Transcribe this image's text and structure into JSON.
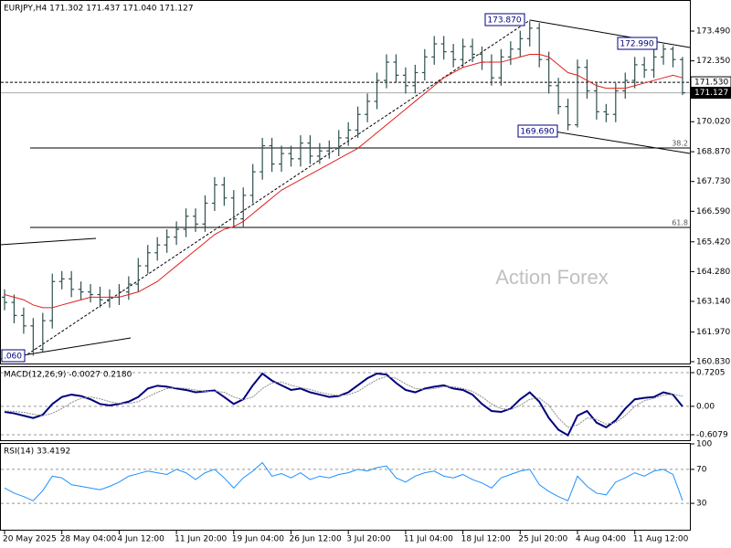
{
  "chart_data": [
    {
      "type": "ohlc",
      "title": "EURJPY,H4  171.302 171.437 171.040 171.127",
      "categories": [
        "20 May 2025",
        null,
        null,
        null,
        null,
        null,
        "28 May 04:00",
        null,
        null,
        null,
        null,
        null,
        "4 Jun 12:00",
        null,
        null,
        null,
        null,
        null,
        "11 Jun 20:00",
        null,
        null,
        null,
        null,
        null,
        "19 Jun 04:00",
        null,
        null,
        null,
        null,
        null,
        "26 Jun 12:00",
        null,
        null,
        null,
        null,
        null,
        "3 Jul 20:00",
        null,
        null,
        null,
        null,
        null,
        "11 Jul 04:00",
        null,
        null,
        null,
        null,
        null,
        "18 Jul 12:00",
        null,
        null,
        null,
        null,
        null,
        "25 Jul 20:00",
        null,
        null,
        null,
        null,
        null,
        "4 Aug 04:00",
        null,
        null,
        null,
        null,
        null,
        "11 Aug 12:00",
        null,
        null,
        null,
        null,
        null
      ],
      "open": [
        163.3,
        163.1,
        162.6,
        162.2,
        161.3,
        162.4,
        163.9,
        164.0,
        163.6,
        163.5,
        163.4,
        163.2,
        163.3,
        163.5,
        163.8,
        164.5,
        165.0,
        165.3,
        165.6,
        165.9,
        166.4,
        166.1,
        166.9,
        167.6,
        167.1,
        166.3,
        167.2,
        168.1,
        169.1,
        168.4,
        168.8,
        168.6,
        169.2,
        168.7,
        168.9,
        169.0,
        169.4,
        169.7,
        170.3,
        170.8,
        171.6,
        172.3,
        171.8,
        171.4,
        171.9,
        172.5,
        173.0,
        172.7,
        172.4,
        172.9,
        172.6,
        172.3,
        171.7,
        172.5,
        172.8,
        173.2,
        173.6,
        172.4,
        171.4,
        170.6,
        169.9,
        172.1,
        171.2,
        170.4,
        170.3,
        171.2,
        171.6,
        172.2,
        172.0,
        172.5,
        172.8,
        172.4
      ],
      "high": [
        163.6,
        163.4,
        162.9,
        162.5,
        162.7,
        164.2,
        164.3,
        164.3,
        163.9,
        163.8,
        163.7,
        163.6,
        163.8,
        164.1,
        164.8,
        165.3,
        165.6,
        165.9,
        166.2,
        166.7,
        166.7,
        167.2,
        167.9,
        167.9,
        167.4,
        167.5,
        168.4,
        169.4,
        169.4,
        169.1,
        169.1,
        169.5,
        169.5,
        169.2,
        169.3,
        169.7,
        170.0,
        170.6,
        171.1,
        171.9,
        172.6,
        172.6,
        172.1,
        172.2,
        172.8,
        173.3,
        173.3,
        173.0,
        173.2,
        173.2,
        172.9,
        172.6,
        172.8,
        173.1,
        173.5,
        173.87,
        173.8,
        172.7,
        171.7,
        170.9,
        172.4,
        172.4,
        171.5,
        170.7,
        171.5,
        171.9,
        172.5,
        172.5,
        172.8,
        172.99,
        172.9,
        172.5
      ],
      "low": [
        162.8,
        162.3,
        161.9,
        161.06,
        161.2,
        162.1,
        163.6,
        163.3,
        163.2,
        163.1,
        162.9,
        162.9,
        163.0,
        163.2,
        163.5,
        164.2,
        164.7,
        165.0,
        165.3,
        165.6,
        165.8,
        165.8,
        166.6,
        166.8,
        166.0,
        166.0,
        166.9,
        167.8,
        168.1,
        168.1,
        168.3,
        168.3,
        168.4,
        168.4,
        168.6,
        168.7,
        169.1,
        169.4,
        170.0,
        170.5,
        171.3,
        171.5,
        171.1,
        171.1,
        171.6,
        172.2,
        172.4,
        172.1,
        172.1,
        172.3,
        172.0,
        171.4,
        171.4,
        172.2,
        172.5,
        172.9,
        172.1,
        171.1,
        170.3,
        169.69,
        169.8,
        170.9,
        170.1,
        170.0,
        170.0,
        170.9,
        171.3,
        171.7,
        171.7,
        172.2,
        172.1,
        171.04
      ],
      "close": [
        163.1,
        162.6,
        162.2,
        161.3,
        162.4,
        163.9,
        164.0,
        163.6,
        163.5,
        163.4,
        163.2,
        163.3,
        163.5,
        163.8,
        164.5,
        165.0,
        165.3,
        165.6,
        165.9,
        166.4,
        166.1,
        166.9,
        167.6,
        167.1,
        166.3,
        167.2,
        168.1,
        169.1,
        168.4,
        168.8,
        168.6,
        169.2,
        168.7,
        168.9,
        169.0,
        169.4,
        169.7,
        170.3,
        170.8,
        171.6,
        172.3,
        171.8,
        171.4,
        171.9,
        172.5,
        173.0,
        172.7,
        172.4,
        172.9,
        172.6,
        172.3,
        171.7,
        172.5,
        172.8,
        173.2,
        173.6,
        172.4,
        171.4,
        170.6,
        169.9,
        172.1,
        171.2,
        170.4,
        170.3,
        171.2,
        171.6,
        172.2,
        172.0,
        172.5,
        172.8,
        172.4,
        171.127
      ],
      "color": "#2f4f4f",
      "ma": {
        "color": "#e0201c",
        "values": [
          163.4,
          163.3,
          163.2,
          163.0,
          162.9,
          162.9,
          163.0,
          163.1,
          163.2,
          163.3,
          163.3,
          163.3,
          163.3,
          163.4,
          163.5,
          163.7,
          163.9,
          164.2,
          164.5,
          164.8,
          165.1,
          165.4,
          165.7,
          165.9,
          166.0,
          166.2,
          166.5,
          166.8,
          167.1,
          167.4,
          167.6,
          167.8,
          168.0,
          168.2,
          168.4,
          168.6,
          168.8,
          169.0,
          169.3,
          169.6,
          169.9,
          170.2,
          170.5,
          170.8,
          171.1,
          171.4,
          171.7,
          171.9,
          172.1,
          172.2,
          172.3,
          172.3,
          172.3,
          172.4,
          172.5,
          172.6,
          172.6,
          172.5,
          172.2,
          171.9,
          171.8,
          171.6,
          171.4,
          171.3,
          171.3,
          171.3,
          171.4,
          171.5,
          171.6,
          171.7,
          171.8,
          171.7
        ]
      },
      "ylim": [
        160.76,
        174.68
      ],
      "yticks": [
        {
          "value": 173.49,
          "label": "173.490"
        },
        {
          "value": 172.35,
          "label": "172.350"
        },
        {
          "value": 170.02,
          "label": "170.020"
        },
        {
          "value": 168.87,
          "label": "168.870"
        },
        {
          "value": 167.73,
          "label": "167.730"
        },
        {
          "value": 166.59,
          "label": "166.590"
        },
        {
          "value": 165.42,
          "label": "165.420"
        },
        {
          "value": 164.28,
          "label": "164.280"
        },
        {
          "value": 163.14,
          "label": "163.140"
        },
        {
          "value": 161.97,
          "label": "161.970"
        },
        {
          "value": 160.83,
          "label": "160.830"
        }
      ],
      "price_lines": [
        {
          "value": 171.53,
          "label": "171.530"
        },
        {
          "value": 171.127,
          "label": "171.127"
        }
      ],
      "annotations": [
        "173.870",
        "172.990",
        "169.690",
        ".060",
        "38.2",
        "61.8"
      ],
      "watermark": "Action Forex"
    },
    {
      "type": "line",
      "title": "MACD(12,26,9) -0.0027 0.2180",
      "series": [
        {
          "color": "#00007f",
          "values": [
            -0.12,
            -0.15,
            -0.2,
            -0.25,
            -0.18,
            0.05,
            0.2,
            0.25,
            0.22,
            0.15,
            0.05,
            0.02,
            0.05,
            0.1,
            0.2,
            0.38,
            0.44,
            0.42,
            0.38,
            0.35,
            0.3,
            0.32,
            0.34,
            0.2,
            0.05,
            0.15,
            0.45,
            0.7,
            0.55,
            0.45,
            0.35,
            0.38,
            0.3,
            0.25,
            0.2,
            0.22,
            0.3,
            0.45,
            0.6,
            0.7,
            0.68,
            0.5,
            0.35,
            0.3,
            0.38,
            0.42,
            0.45,
            0.38,
            0.35,
            0.25,
            0.05,
            -0.1,
            -0.12,
            -0.05,
            0.15,
            0.3,
            0.1,
            -0.25,
            -0.5,
            -0.62,
            -0.2,
            -0.1,
            -0.35,
            -0.45,
            -0.3,
            -0.05,
            0.15,
            0.18,
            0.2,
            0.3,
            0.25,
            -0.0027
          ]
        },
        {
          "color": "#8c8c8c",
          "values": [
            -0.1,
            -0.11,
            -0.13,
            -0.17,
            -0.2,
            -0.15,
            -0.05,
            0.08,
            0.17,
            0.2,
            0.16,
            0.1,
            0.06,
            0.06,
            0.1,
            0.2,
            0.3,
            0.38,
            0.4,
            0.38,
            0.35,
            0.32,
            0.32,
            0.3,
            0.2,
            0.14,
            0.2,
            0.38,
            0.5,
            0.52,
            0.45,
            0.4,
            0.36,
            0.3,
            0.26,
            0.23,
            0.25,
            0.32,
            0.45,
            0.57,
            0.64,
            0.6,
            0.48,
            0.38,
            0.36,
            0.38,
            0.42,
            0.42,
            0.38,
            0.32,
            0.2,
            0.05,
            -0.05,
            -0.07,
            0.02,
            0.15,
            0.18,
            0.02,
            -0.25,
            -0.45,
            -0.4,
            -0.25,
            -0.28,
            -0.38,
            -0.35,
            -0.2,
            0.0,
            0.12,
            0.17,
            0.24,
            0.26,
            0.218
          ]
        }
      ],
      "ylim": [
        -0.725,
        0.857
      ],
      "yticks": [
        0.7205,
        {
          "value": 0,
          "label": "0.00"
        },
        -0.6079
      ]
    },
    {
      "type": "line",
      "title": "RSI(14) 33.4192",
      "series": [
        {
          "color": "#1e90ff",
          "values": [
            48,
            42,
            38,
            33,
            45,
            62,
            60,
            52,
            50,
            48,
            46,
            50,
            55,
            62,
            65,
            68,
            66,
            64,
            70,
            66,
            58,
            66,
            70,
            60,
            48,
            60,
            68,
            78,
            62,
            65,
            60,
            66,
            58,
            62,
            60,
            64,
            66,
            70,
            68,
            72,
            74,
            60,
            55,
            62,
            66,
            68,
            62,
            60,
            64,
            58,
            54,
            48,
            60,
            64,
            68,
            70,
            52,
            44,
            38,
            33,
            62,
            50,
            42,
            40,
            55,
            60,
            66,
            62,
            68,
            70,
            64,
            33.4192
          ]
        }
      ],
      "ylim": [
        0,
        100
      ],
      "yticks": [
        100,
        70,
        30
      ]
    }
  ]
}
